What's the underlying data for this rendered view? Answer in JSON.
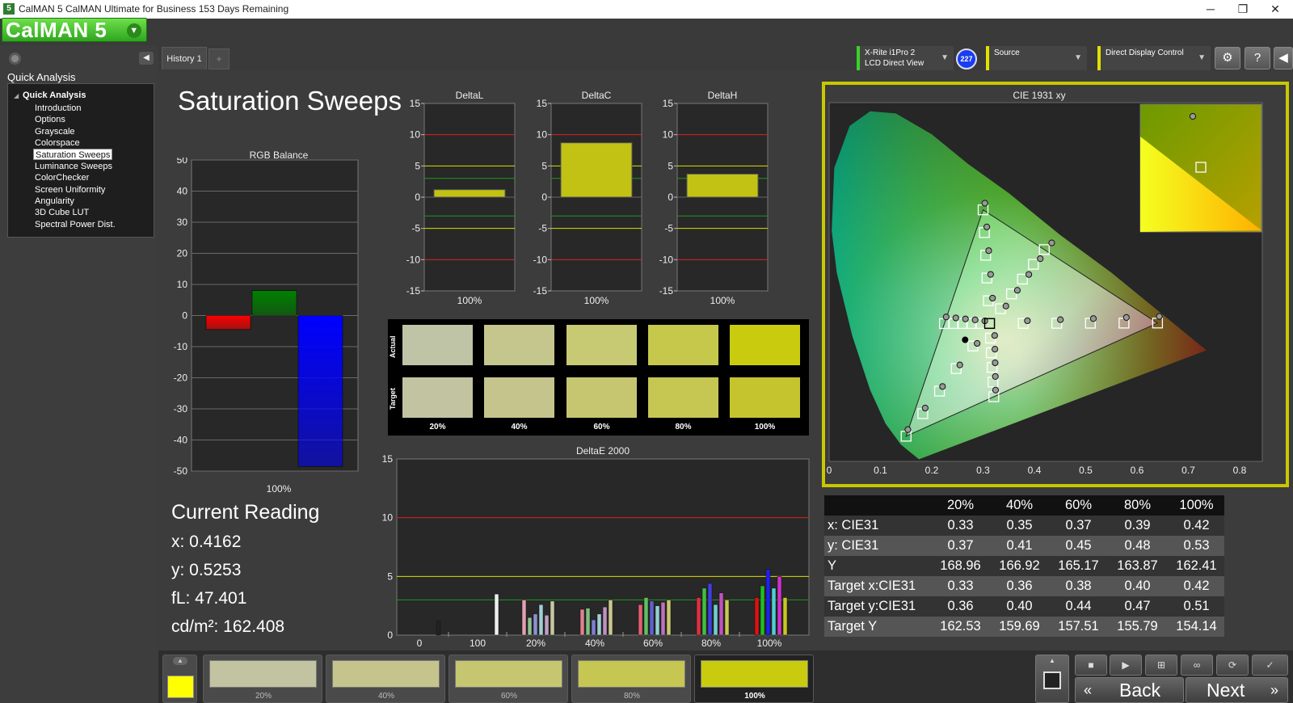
{
  "window": {
    "title": "CalMAN 5 CalMAN Ultimate for Business 153 Days Remaining",
    "icon_label": "5",
    "controls": [
      "─",
      "❐",
      "✕"
    ]
  },
  "logo": {
    "text": "CalMAN 5"
  },
  "sidebar": {
    "panel_title": "Quick Analysis",
    "group": "Quick Analysis",
    "items": [
      "Introduction",
      "Options",
      "Grayscale",
      "Colorspace",
      "Saturation Sweeps",
      "Luminance Sweeps",
      "ColorChecker",
      "Screen Uniformity",
      "Angularity",
      "3D Cube LUT",
      "Spectral Power Dist."
    ],
    "selected": "Saturation Sweeps"
  },
  "tabs": {
    "active": "History 1",
    "add": "+"
  },
  "devices": {
    "meter_line1": "X-Rite i1Pro 2",
    "meter_line2": "LCD Direct View",
    "badge": "227",
    "source": "Source",
    "display": "Direct Display Control"
  },
  "page": {
    "title": "Saturation Sweeps"
  },
  "rgb_balance": {
    "title": "RGB Balance",
    "xlabel": "100%",
    "yticks": [
      "50",
      "40",
      "30",
      "20",
      "10",
      "0",
      "-10",
      "-20",
      "-30",
      "-40",
      "-50"
    ],
    "ylim": [
      -50,
      50
    ],
    "bars": [
      {
        "name": "R",
        "value": -4.5,
        "color": "#ff0000"
      },
      {
        "name": "G",
        "value": 8,
        "color": "#008000"
      },
      {
        "name": "B",
        "value": -48.5,
        "color": "#0000ff"
      }
    ]
  },
  "delta_charts": [
    {
      "title": "DeltaL",
      "value": 1.2,
      "xlabel": "100%"
    },
    {
      "title": "DeltaC",
      "value": 8.7,
      "xlabel": "100%"
    },
    {
      "title": "DeltaH",
      "value": 3.7,
      "xlabel": "100%"
    }
  ],
  "delta_yticks": [
    "15",
    "10",
    "5",
    "0",
    "-5",
    "-10",
    "-15"
  ],
  "swatches": {
    "actual_label": "Actual",
    "target_label": "Target",
    "labels": [
      "20%",
      "40%",
      "60%",
      "80%",
      "100%"
    ],
    "actual_colors": [
      "#c0c4a6",
      "#c4c68d",
      "#c7c973",
      "#c6c84c",
      "#c9cc0e"
    ],
    "target_colors": [
      "#c2c3a1",
      "#c5c48c",
      "#c6c670",
      "#c6c653",
      "#c6c42e"
    ]
  },
  "deltae": {
    "title": "DeltaE 2000",
    "yticks": [
      "15",
      "10",
      "5",
      "0"
    ],
    "xlabels": [
      "0",
      "100",
      "20%",
      "40%",
      "60%",
      "80%",
      "100%"
    ]
  },
  "cie": {
    "title": "CIE 1931 xy"
  },
  "reading": {
    "heading": "Current Reading",
    "x": "x: 0.4162",
    "y": "y: 0.5253",
    "fl": "fL: 47.401",
    "cdm2": "cd/m²: 162.408"
  },
  "table": {
    "headers": [
      "",
      "20%",
      "40%",
      "60%",
      "80%",
      "100%"
    ],
    "rows": [
      [
        "x: CIE31",
        "0.33",
        "0.35",
        "0.37",
        "0.39",
        "0.42"
      ],
      [
        "y: CIE31",
        "0.37",
        "0.41",
        "0.45",
        "0.48",
        "0.53"
      ],
      [
        "Y",
        "168.96",
        "166.92",
        "165.17",
        "163.87",
        "162.41"
      ],
      [
        "Target x:CIE31",
        "0.33",
        "0.36",
        "0.38",
        "0.40",
        "0.42"
      ],
      [
        "Target y:CIE31",
        "0.36",
        "0.40",
        "0.44",
        "0.47",
        "0.51"
      ],
      [
        "Target Y",
        "162.53",
        "159.69",
        "157.51",
        "155.79",
        "154.14"
      ]
    ]
  },
  "bottom": {
    "swatch_labels": [
      "20%",
      "40%",
      "60%",
      "80%",
      "100%"
    ],
    "swatch_colors": [
      "#c2c3a1",
      "#c5c48c",
      "#c6c670",
      "#c6c653",
      "#c9cc0e"
    ],
    "current_color": "#ffff00",
    "back": "Back",
    "next": "Next"
  }
}
